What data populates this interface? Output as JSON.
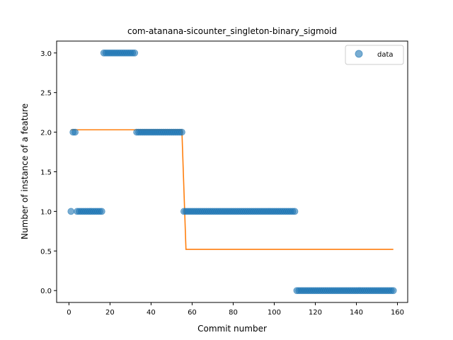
{
  "chart_data": {
    "type": "scatter",
    "title": "com-atanana-sicounter_singleton-binary_sigmoid",
    "xlabel": "Commit number",
    "ylabel": "Number of instance of a feature",
    "xlim": [
      -6,
      165
    ],
    "ylim": [
      -0.15,
      3.15
    ],
    "xticks": [
      0,
      20,
      40,
      60,
      80,
      100,
      120,
      140,
      160
    ],
    "yticks": [
      0.0,
      0.5,
      1.0,
      1.5,
      2.0,
      2.5,
      3.0
    ],
    "ytick_labels": [
      "0.0",
      "0.5",
      "1.0",
      "1.5",
      "2.0",
      "2.5",
      "3.0"
    ],
    "legend": {
      "placement": "top-right",
      "entries": [
        "data"
      ]
    },
    "colors": {
      "data": "#1f77b4",
      "fit": "#ff7f0e"
    },
    "series": [
      {
        "name": "data",
        "kind": "points",
        "segments": [
          {
            "x_from": 1,
            "x_to": 1,
            "y": 1
          },
          {
            "x_from": 2,
            "x_to": 3,
            "y": 2
          },
          {
            "x_from": 4,
            "x_to": 16,
            "y": 1
          },
          {
            "x_from": 17,
            "x_to": 32,
            "y": 3
          },
          {
            "x_from": 33,
            "x_to": 55,
            "y": 2
          },
          {
            "x_from": 56,
            "x_to": 110,
            "y": 1
          },
          {
            "x_from": 111,
            "x_to": 158,
            "y": 0
          }
        ]
      },
      {
        "kind": "line",
        "x": [
          1,
          55,
          57,
          158
        ],
        "y": [
          2.03,
          2.03,
          0.52,
          0.52
        ]
      }
    ]
  }
}
